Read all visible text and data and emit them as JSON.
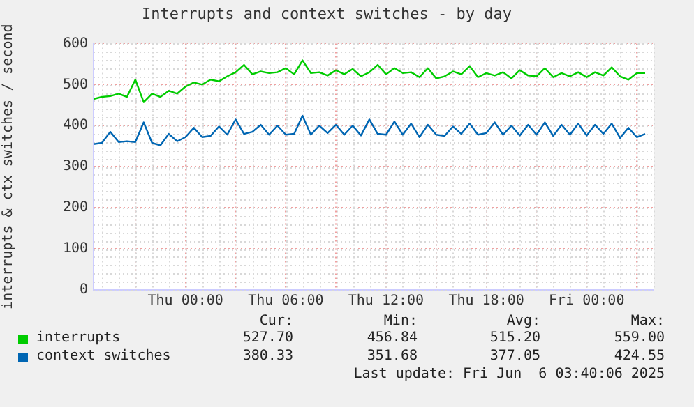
{
  "chart_data": {
    "type": "line",
    "title": "Interrupts and context switches - by day",
    "ylabel": "interrupts & ctx switches / second",
    "x": [
      "2025-06-04T18:30",
      "2025-06-04T19:00",
      "2025-06-04T19:30",
      "2025-06-04T20:00",
      "2025-06-04T20:30",
      "2025-06-04T21:00",
      "2025-06-04T21:30",
      "2025-06-04T22:00",
      "2025-06-04T22:30",
      "2025-06-04T23:00",
      "2025-06-04T23:30",
      "2025-06-05T00:00",
      "2025-06-05T00:30",
      "2025-06-05T01:00",
      "2025-06-05T01:30",
      "2025-06-05T02:00",
      "2025-06-05T02:30",
      "2025-06-05T03:00",
      "2025-06-05T03:30",
      "2025-06-05T04:00",
      "2025-06-05T04:30",
      "2025-06-05T05:00",
      "2025-06-05T05:30",
      "2025-06-05T06:00",
      "2025-06-05T06:30",
      "2025-06-05T07:00",
      "2025-06-05T07:30",
      "2025-06-05T08:00",
      "2025-06-05T08:30",
      "2025-06-05T09:00",
      "2025-06-05T09:30",
      "2025-06-05T10:00",
      "2025-06-05T10:30",
      "2025-06-05T11:00",
      "2025-06-05T11:30",
      "2025-06-05T12:00",
      "2025-06-05T12:30",
      "2025-06-05T13:00",
      "2025-06-05T13:30",
      "2025-06-05T14:00",
      "2025-06-05T14:30",
      "2025-06-05T15:00",
      "2025-06-05T15:30",
      "2025-06-05T16:00",
      "2025-06-05T16:30",
      "2025-06-05T17:00",
      "2025-06-05T17:30",
      "2025-06-05T18:00",
      "2025-06-05T18:30",
      "2025-06-05T19:00",
      "2025-06-05T19:30",
      "2025-06-05T20:00",
      "2025-06-05T20:30",
      "2025-06-05T21:00",
      "2025-06-05T21:30",
      "2025-06-05T22:00",
      "2025-06-05T22:30",
      "2025-06-05T23:00",
      "2025-06-05T23:30",
      "2025-06-06T00:00",
      "2025-06-06T00:30",
      "2025-06-06T01:00",
      "2025-06-06T01:30",
      "2025-06-06T02:00",
      "2025-06-06T02:30",
      "2025-06-06T03:00",
      "2025-06-06T03:30"
    ],
    "series": [
      {
        "name": "interrupts",
        "color": "#00cc00",
        "values": [
          465,
          470,
          472,
          478,
          470,
          512,
          457,
          478,
          470,
          485,
          478,
          495,
          505,
          500,
          512,
          508,
          520,
          530,
          548,
          525,
          532,
          528,
          530,
          540,
          525,
          559,
          528,
          530,
          522,
          535,
          525,
          538,
          520,
          530,
          548,
          525,
          540,
          528,
          530,
          518,
          540,
          515,
          520,
          532,
          525,
          545,
          518,
          528,
          522,
          530,
          515,
          535,
          522,
          520,
          540,
          518,
          528,
          520,
          530,
          518,
          530,
          522,
          542,
          520,
          512,
          528,
          528
        ]
      },
      {
        "name": "context switches",
        "color": "#0066b3",
        "values": [
          355,
          358,
          385,
          360,
          362,
          360,
          408,
          358,
          352,
          380,
          362,
          372,
          395,
          372,
          375,
          398,
          378,
          415,
          380,
          385,
          402,
          378,
          400,
          378,
          380,
          424,
          378,
          400,
          382,
          402,
          378,
          400,
          376,
          415,
          380,
          378,
          410,
          378,
          405,
          372,
          402,
          378,
          375,
          398,
          380,
          405,
          378,
          382,
          408,
          378,
          400,
          376,
          402,
          378,
          408,
          375,
          402,
          378,
          405,
          376,
          402,
          380,
          405,
          370,
          395,
          372,
          380
        ]
      }
    ],
    "xlim": [
      "2025-06-04T18:30",
      "2025-06-06T04:00"
    ],
    "xticks": [
      {
        "value": "2025-06-04T21:00",
        "label": null
      },
      {
        "value": "2025-06-05T00:00",
        "label": "Thu 00:00"
      },
      {
        "value": "2025-06-05T03:00",
        "label": null
      },
      {
        "value": "2025-06-05T06:00",
        "label": "Thu 06:00"
      },
      {
        "value": "2025-06-05T09:00",
        "label": null
      },
      {
        "value": "2025-06-05T12:00",
        "label": "Thu 12:00"
      },
      {
        "value": "2025-06-05T15:00",
        "label": null
      },
      {
        "value": "2025-06-05T18:00",
        "label": "Thu 18:00"
      },
      {
        "value": "2025-06-05T21:00",
        "label": null
      },
      {
        "value": "2025-06-06T00:00",
        "label": "Fri 00:00"
      },
      {
        "value": "2025-06-06T03:00",
        "label": null
      }
    ],
    "ylim": [
      0,
      600
    ],
    "yticks": [
      0,
      100,
      200,
      300,
      400,
      500,
      600
    ],
    "grid": true,
    "legend": "bottom",
    "marker": "none",
    "line_style": "solid",
    "annotations": [
      "Cur:",
      "Min:",
      "Avg:",
      "Max:",
      "527.70",
      "456.84",
      "515.20",
      "559.00",
      "380.33",
      "351.68",
      "377.05",
      "424.55",
      "Last update: Fri Jun  6 03:40:06 2025"
    ]
  }
}
